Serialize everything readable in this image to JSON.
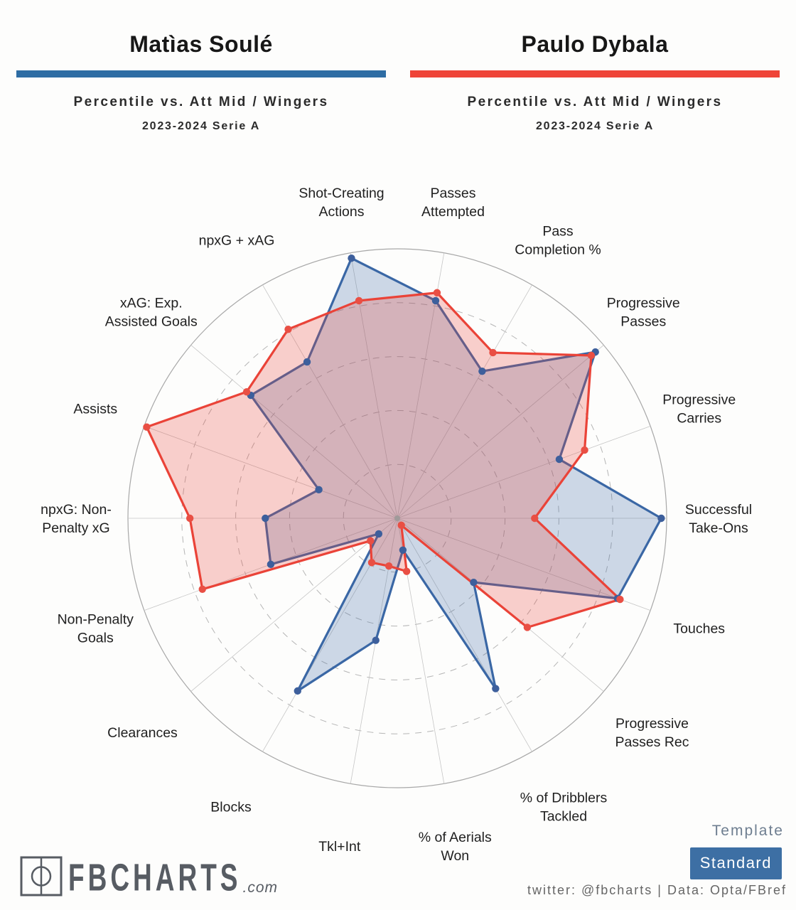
{
  "header": {
    "left": {
      "name": "Matìas Soulé",
      "accent": "#2e6da4",
      "subtitle": "Percentile vs. Att Mid / Wingers",
      "season": "2023-2024 Serie A"
    },
    "right": {
      "name": "Paulo Dybala",
      "accent": "#ef4438",
      "subtitle": "Percentile vs. Att Mid / Wingers",
      "season": "2023-2024 Serie A"
    }
  },
  "chart_data": {
    "type": "radar",
    "metric": "percentile vs. Att Mid / Wingers, 2023-2024 Serie A",
    "axis_max": 100,
    "rings": [
      20,
      40,
      60,
      80,
      100
    ],
    "start_angle_deg": 80,
    "step_deg": -20,
    "grid": {
      "ring_color": "#b5b5b5",
      "outer_ring_color": "#a8a8a8",
      "spoke_color": "#c6c6c6"
    },
    "axes": [
      [
        "Passes",
        "Attempted"
      ],
      [
        "Pass",
        "Completion %"
      ],
      [
        "Progressive",
        "Passes"
      ],
      [
        "Progressive",
        "Carries"
      ],
      [
        "Successful",
        "Take-Ons"
      ],
      [
        "Touches"
      ],
      [
        "Progressive",
        "Passes Rec"
      ],
      [
        "% of Dribblers",
        "Tackled"
      ],
      [
        "% of Aerials",
        "Won"
      ],
      [
        "Tkl+Int"
      ],
      [
        "Blocks"
      ],
      [
        "Clearances"
      ],
      [
        "Non-Penalty",
        "Goals"
      ],
      [
        "npxG: Non-",
        "Penalty xG"
      ],
      [
        "Assists"
      ],
      [
        "xAG: Exp.",
        "Assisted Goals"
      ],
      [
        "npxG + xAG"
      ],
      [
        "Shot-Creating",
        "Actions"
      ]
    ],
    "series": [
      {
        "name": "Matìas Soulé",
        "color": "#3a67a5",
        "dot_color": "#3d5f9c",
        "fill_opacity": 0.25,
        "values": [
          82,
          63,
          96,
          64,
          98,
          87,
          37,
          73,
          12,
          46,
          74,
          9,
          50,
          49,
          31,
          71,
          67,
          98
        ]
      },
      {
        "name": "Paulo Dybala",
        "color": "#ea4338",
        "dot_color": "#e94f44",
        "fill_opacity": 0.25,
        "values": [
          85,
          71,
          94,
          74,
          51,
          88,
          63,
          3,
          20,
          18,
          19,
          13,
          77,
          77,
          99,
          73,
          81,
          82
        ]
      }
    ]
  },
  "footer": {
    "logo_text": "FBCHARTS",
    "logo_suffix": ".com",
    "template_label": "Template",
    "template_value": "Standard",
    "credit": "twitter: @fbcharts | Data: Opta/FBref"
  }
}
